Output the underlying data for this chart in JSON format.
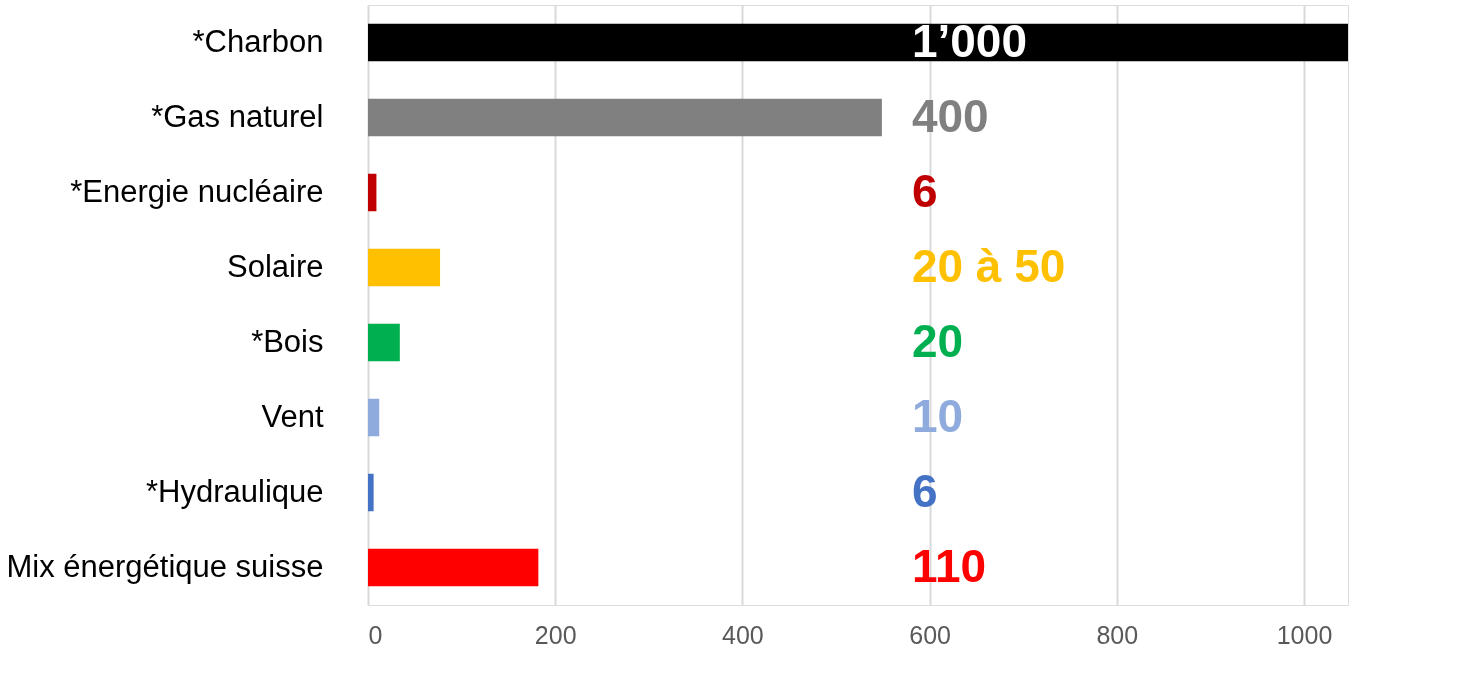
{
  "chart_data": {
    "type": "bar",
    "orientation": "horizontal",
    "categories": [
      "*Charbon",
      "*Gas naturel",
      "*Energie nucléaire",
      "Solaire",
      "*Bois",
      "Vent",
      "*Hydraulique",
      "Mix énergétique suisse"
    ],
    "values": [
      1047,
      549,
      9,
      77,
      34,
      12,
      6,
      182
    ],
    "colors": [
      "#000000",
      "#808080",
      "#c00000",
      "#ffc000",
      "#00b050",
      "#8faadc",
      "#4472c4",
      "#ff0000"
    ],
    "annotations": [
      "1’000",
      "400",
      "6",
      "20 à 50",
      "20",
      "10",
      "6",
      "110"
    ],
    "xlim": [
      0,
      1047
    ],
    "xticks": [
      0,
      200,
      400,
      600,
      800,
      1000
    ],
    "grid": "x"
  }
}
